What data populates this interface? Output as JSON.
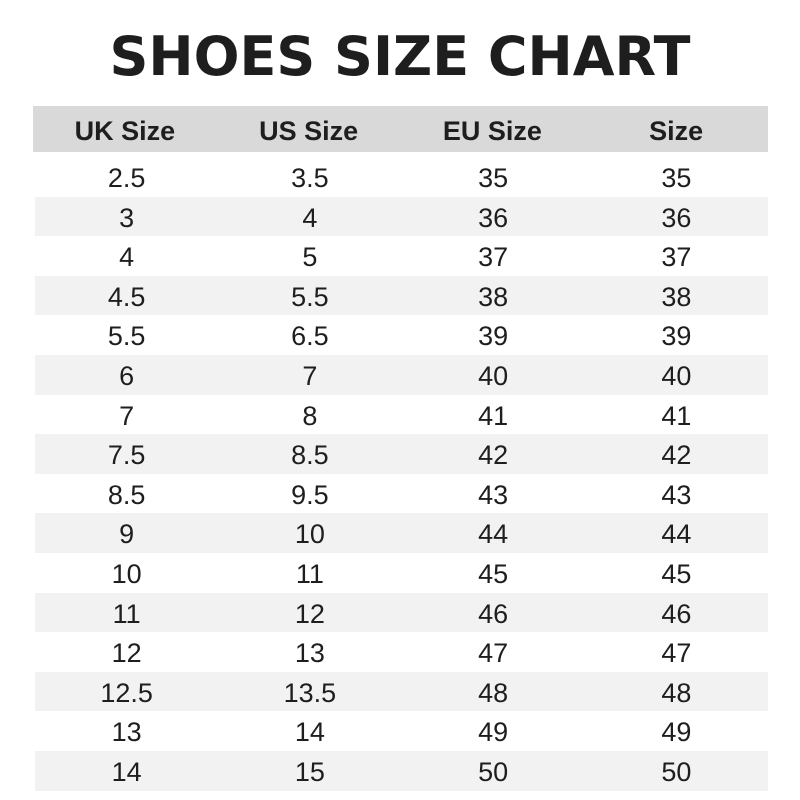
{
  "title": "SHOES SIZE CHART",
  "columns": [
    "UK Size",
    "US Size",
    "EU Size",
    "Size"
  ],
  "rows": [
    [
      "2.5",
      "3.5",
      "35",
      "35"
    ],
    [
      "3",
      "4",
      "36",
      "36"
    ],
    [
      "4",
      "5",
      "37",
      "37"
    ],
    [
      "4.5",
      "5.5",
      "38",
      "38"
    ],
    [
      "5.5",
      "6.5",
      "39",
      "39"
    ],
    [
      "6",
      "7",
      "40",
      "40"
    ],
    [
      "7",
      "8",
      "41",
      "41"
    ],
    [
      "7.5",
      "8.5",
      "42",
      "42"
    ],
    [
      "8.5",
      "9.5",
      "43",
      "43"
    ],
    [
      "9",
      "10",
      "44",
      "44"
    ],
    [
      "10",
      "11",
      "45",
      "45"
    ],
    [
      "11",
      "12",
      "46",
      "46"
    ],
    [
      "12",
      "13",
      "47",
      "47"
    ],
    [
      "12.5",
      "13.5",
      "48",
      "48"
    ],
    [
      "13",
      "14",
      "49",
      "49"
    ],
    [
      "14",
      "15",
      "50",
      "50"
    ]
  ],
  "colors": {
    "header_bg": "#d9d9d9",
    "stripe_bg": "#f2f2f2",
    "text": "#1e1e1e"
  }
}
